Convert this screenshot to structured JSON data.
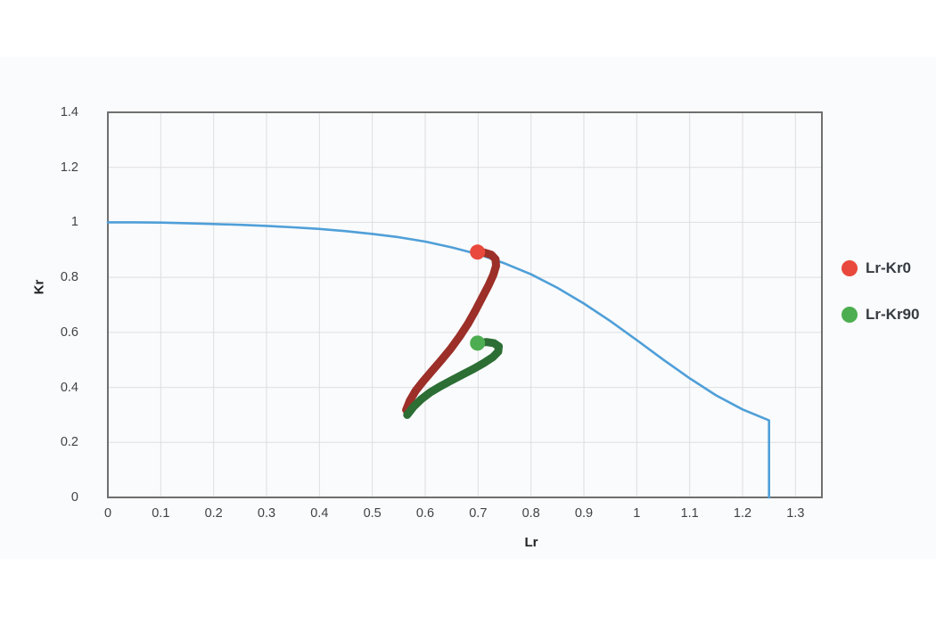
{
  "page": {
    "background": "#ffffff",
    "panel_background": "#fafbfd"
  },
  "chart_data": {
    "type": "line",
    "title": "",
    "xlabel": "Lr",
    "ylabel": "Kr",
    "xlim": [
      0,
      1.35
    ],
    "ylim": [
      0,
      1.4
    ],
    "grid": true,
    "grid_color": "#dedede",
    "border_color": "#6f6f6f",
    "x_ticks": [
      0,
      0.1,
      0.2,
      0.3,
      0.4,
      0.5,
      0.6,
      0.7,
      0.8,
      0.9,
      1,
      1.1,
      1.2,
      1.3
    ],
    "x_tick_labels": [
      "0",
      "0.1",
      "0.2",
      "0.3",
      "0.4",
      "0.5",
      "0.6",
      "0.7",
      "0.8",
      "0.9",
      "1",
      "1.1",
      "1.2",
      "1.3"
    ],
    "y_ticks": [
      0,
      0.2,
      0.4,
      0.6,
      0.8,
      1,
      1.2,
      1.4
    ],
    "y_tick_labels": [
      "0",
      "0.2",
      "0.4",
      "0.6",
      "0.8",
      "1",
      "1.2",
      "1.4"
    ],
    "legend": {
      "position": "right",
      "items": [
        {
          "label": "Lr-Kr0",
          "color": "#e8493c"
        },
        {
          "label": "Lr-Kr90",
          "color": "#4cae50"
        }
      ]
    },
    "series": [
      {
        "name": "fad-limit-curve",
        "color": "#4f9fd8",
        "width": 2.6,
        "points": [
          [
            0,
            1.0
          ],
          [
            0.05,
            1.0
          ],
          [
            0.1,
            0.999
          ],
          [
            0.15,
            0.997
          ],
          [
            0.2,
            0.994
          ],
          [
            0.25,
            0.991
          ],
          [
            0.3,
            0.987
          ],
          [
            0.35,
            0.982
          ],
          [
            0.4,
            0.976
          ],
          [
            0.45,
            0.968
          ],
          [
            0.5,
            0.958
          ],
          [
            0.55,
            0.946
          ],
          [
            0.6,
            0.93
          ],
          [
            0.65,
            0.909
          ],
          [
            0.7,
            0.884
          ],
          [
            0.75,
            0.851
          ],
          [
            0.8,
            0.811
          ],
          [
            0.85,
            0.762
          ],
          [
            0.9,
            0.705
          ],
          [
            0.95,
            0.641
          ],
          [
            1.0,
            0.572
          ],
          [
            1.05,
            0.501
          ],
          [
            1.1,
            0.433
          ],
          [
            1.15,
            0.371
          ],
          [
            1.2,
            0.32
          ],
          [
            1.25,
            0.28
          ],
          [
            1.25,
            0.0
          ]
        ]
      },
      {
        "name": "Lr-Kr0",
        "color": "#9c2f28",
        "width": 9,
        "marker_color": "#e8493c",
        "marker_radius": 8.5,
        "points": [
          [
            0.564,
            0.318
          ],
          [
            0.571,
            0.352
          ],
          [
            0.582,
            0.388
          ],
          [
            0.596,
            0.422
          ],
          [
            0.612,
            0.458
          ],
          [
            0.63,
            0.498
          ],
          [
            0.648,
            0.54
          ],
          [
            0.665,
            0.585
          ],
          [
            0.681,
            0.632
          ],
          [
            0.695,
            0.68
          ],
          [
            0.708,
            0.728
          ],
          [
            0.72,
            0.772
          ],
          [
            0.729,
            0.81
          ],
          [
            0.734,
            0.842
          ],
          [
            0.733,
            0.866
          ],
          [
            0.725,
            0.882
          ],
          [
            0.712,
            0.89
          ],
          [
            0.699,
            0.892
          ]
        ]
      },
      {
        "name": "Lr-Kr90",
        "color": "#2c6e34",
        "width": 9,
        "marker_color": "#4cae50",
        "marker_radius": 8.5,
        "points": [
          [
            0.566,
            0.3
          ],
          [
            0.578,
            0.33
          ],
          [
            0.592,
            0.356
          ],
          [
            0.609,
            0.381
          ],
          [
            0.628,
            0.403
          ],
          [
            0.648,
            0.424
          ],
          [
            0.67,
            0.446
          ],
          [
            0.692,
            0.468
          ],
          [
            0.712,
            0.49
          ],
          [
            0.728,
            0.51
          ],
          [
            0.738,
            0.53
          ],
          [
            0.739,
            0.549
          ],
          [
            0.73,
            0.561
          ],
          [
            0.716,
            0.565
          ],
          [
            0.699,
            0.561
          ]
        ]
      }
    ]
  }
}
